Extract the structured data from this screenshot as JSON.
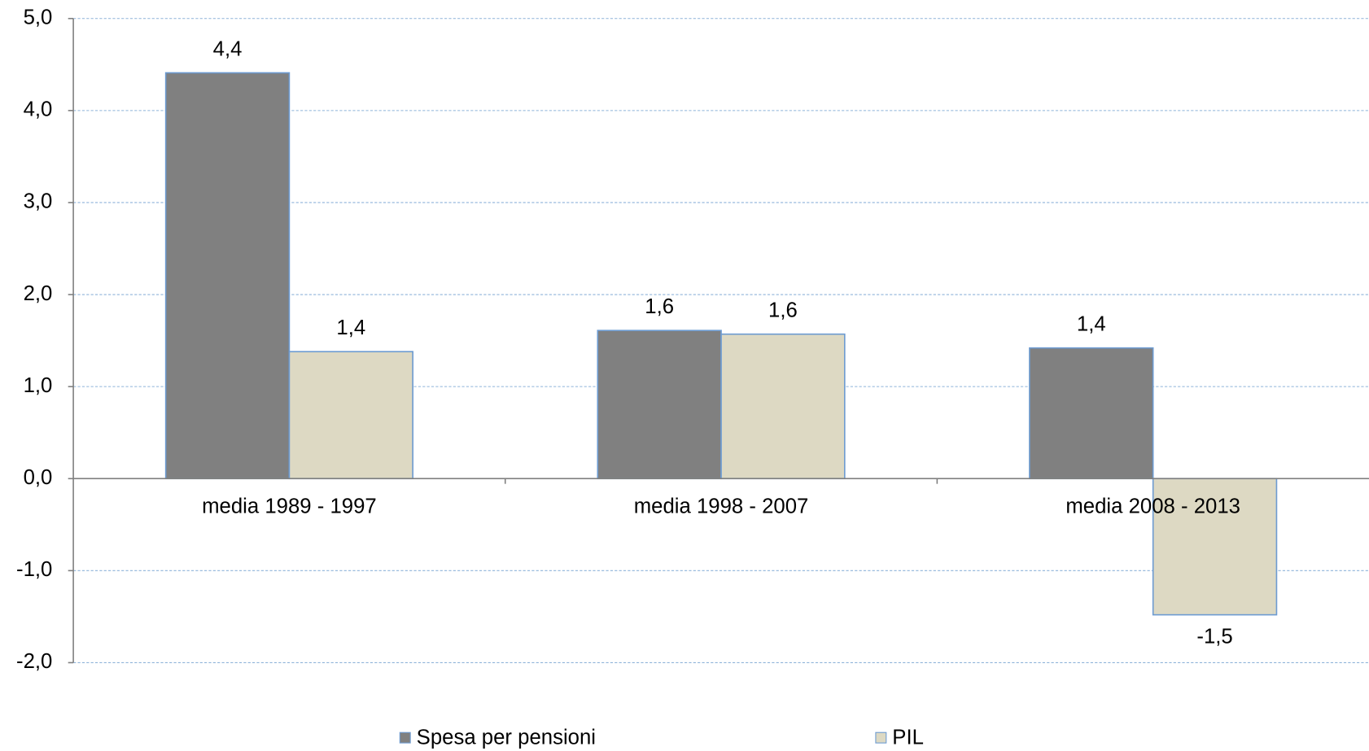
{
  "chart_data": {
    "type": "bar",
    "categories": [
      "media 1989 - 1997",
      "media 1998 - 2007",
      "media 2008 - 2013"
    ],
    "series": [
      {
        "name": "Spesa per pensioni",
        "color": "#808080",
        "values": [
          4.41,
          1.61,
          1.42
        ],
        "value_labels": [
          "4,4",
          "1,6",
          "1,4"
        ]
      },
      {
        "name": "PIL",
        "color": "#ddd9c3",
        "values": [
          1.38,
          1.57,
          -1.48
        ],
        "value_labels": [
          "1,4",
          "1,6",
          "-1,5"
        ]
      }
    ],
    "ylim": [
      -2,
      5
    ],
    "yticks": [
      {
        "value": -2,
        "label": "-2,0"
      },
      {
        "value": -1,
        "label": "-1,0"
      },
      {
        "value": 0,
        "label": "0,0"
      },
      {
        "value": 1,
        "label": "1,0"
      },
      {
        "value": 2,
        "label": "2,0"
      },
      {
        "value": 3,
        "label": "3,0"
      },
      {
        "value": 4,
        "label": "4,0"
      },
      {
        "value": 5,
        "label": "5,0"
      }
    ],
    "grid": true,
    "legend": "bottom"
  }
}
